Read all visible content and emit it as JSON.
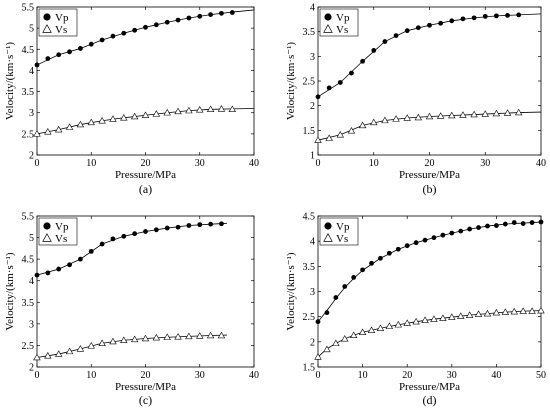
{
  "chart_data": [
    {
      "type": "scatter",
      "panel_label": "(a)",
      "xlabel": "Pressure/MPa",
      "ylabel": "Velocity/(km·s⁻¹)",
      "xlim": [
        0,
        40
      ],
      "ylim": [
        2,
        5.5
      ],
      "xticks": [
        0,
        10,
        20,
        30,
        40
      ],
      "yticks": [
        2,
        2.5,
        3,
        3.5,
        4,
        4.5,
        5,
        5.5
      ],
      "legend_position": "top-left",
      "series": [
        {
          "name": "Vp",
          "marker": "circle",
          "x": [
            0,
            2,
            4,
            6,
            8,
            10,
            12,
            14,
            16,
            18,
            20,
            22,
            24,
            26,
            28,
            30,
            32,
            34,
            36
          ],
          "y": [
            4.13,
            4.28,
            4.37,
            4.44,
            4.52,
            4.62,
            4.72,
            4.81,
            4.88,
            4.95,
            5.02,
            5.08,
            5.14,
            5.19,
            5.24,
            5.28,
            5.32,
            5.35,
            5.37
          ],
          "fit": {
            "x": [
              0,
              4,
              8,
              12,
              16,
              20,
              24,
              28,
              32,
              36,
              40
            ],
            "y": [
              4.13,
              4.37,
              4.52,
              4.72,
              4.88,
              5.02,
              5.14,
              5.24,
              5.32,
              5.38,
              5.43
            ]
          }
        },
        {
          "name": "Vs",
          "marker": "triangle",
          "x": [
            0,
            2,
            4,
            6,
            8,
            10,
            12,
            14,
            16,
            18,
            20,
            22,
            24,
            26,
            28,
            30,
            32,
            34,
            36
          ],
          "y": [
            2.5,
            2.55,
            2.6,
            2.66,
            2.72,
            2.77,
            2.81,
            2.85,
            2.88,
            2.91,
            2.94,
            2.97,
            3.0,
            3.03,
            3.05,
            3.07,
            3.08,
            3.09,
            3.08
          ],
          "fit": {
            "x": [
              0,
              4,
              8,
              12,
              16,
              20,
              24,
              28,
              32,
              36,
              40
            ],
            "y": [
              2.5,
              2.6,
              2.72,
              2.81,
              2.88,
              2.94,
              3.0,
              3.05,
              3.08,
              3.09,
              3.1
            ]
          }
        }
      ]
    },
    {
      "type": "scatter",
      "panel_label": "(b)",
      "xlabel": "Pressure/MPa",
      "ylabel": "Velocity/(km·s⁻¹)",
      "xlim": [
        0,
        40
      ],
      "ylim": [
        1,
        4
      ],
      "xticks": [
        0,
        10,
        20,
        30,
        40
      ],
      "yticks": [
        1,
        1.5,
        2,
        2.5,
        3,
        3.5,
        4
      ],
      "legend_position": "top-left",
      "series": [
        {
          "name": "Vp",
          "marker": "circle",
          "x": [
            0,
            2,
            4,
            6,
            8,
            10,
            12,
            14,
            16,
            18,
            20,
            22,
            24,
            26,
            28,
            30,
            32,
            34,
            36
          ],
          "y": [
            2.18,
            2.36,
            2.47,
            2.66,
            2.9,
            3.12,
            3.3,
            3.42,
            3.52,
            3.58,
            3.63,
            3.67,
            3.72,
            3.76,
            3.78,
            3.81,
            3.82,
            3.83,
            3.84
          ],
          "fit": {
            "x": [
              0,
              4,
              8,
              12,
              16,
              20,
              24,
              28,
              32,
              36,
              40
            ],
            "y": [
              2.18,
              2.47,
              2.9,
              3.3,
              3.52,
              3.63,
              3.72,
              3.78,
              3.82,
              3.84,
              3.86
            ]
          }
        },
        {
          "name": "Vs",
          "marker": "triangle",
          "x": [
            0,
            2,
            4,
            6,
            8,
            10,
            12,
            14,
            16,
            18,
            20,
            22,
            24,
            26,
            28,
            30,
            32,
            34,
            36
          ],
          "y": [
            1.3,
            1.34,
            1.41,
            1.49,
            1.6,
            1.66,
            1.7,
            1.73,
            1.75,
            1.76,
            1.78,
            1.79,
            1.8,
            1.81,
            1.82,
            1.83,
            1.84,
            1.85,
            1.86
          ],
          "fit": {
            "x": [
              0,
              4,
              8,
              12,
              16,
              20,
              24,
              28,
              32,
              36,
              40
            ],
            "y": [
              1.3,
              1.41,
              1.6,
              1.7,
              1.75,
              1.78,
              1.8,
              1.82,
              1.84,
              1.86,
              1.87
            ]
          }
        }
      ]
    },
    {
      "type": "scatter",
      "panel_label": "(c)",
      "xlabel": "Pressure/MPa",
      "ylabel": "Velocity/(km·s⁻¹)",
      "xlim": [
        0,
        40
      ],
      "ylim": [
        2,
        5.5
      ],
      "xticks": [
        0,
        10,
        20,
        30,
        40
      ],
      "yticks": [
        2,
        2.5,
        3,
        3.5,
        4,
        4.5,
        5,
        5.5
      ],
      "legend_position": "top-left",
      "series": [
        {
          "name": "Vp",
          "marker": "circle",
          "x": [
            0,
            2,
            4,
            6,
            8,
            10,
            12,
            14,
            16,
            18,
            20,
            22,
            24,
            26,
            28,
            30,
            32,
            34
          ],
          "y": [
            4.13,
            4.18,
            4.27,
            4.37,
            4.5,
            4.68,
            4.85,
            4.97,
            5.03,
            5.09,
            5.14,
            5.18,
            5.22,
            5.24,
            5.28,
            5.3,
            5.31,
            5.32
          ],
          "fit": {
            "x": [
              0,
              4,
              8,
              12,
              16,
              20,
              24,
              28,
              32,
              35
            ],
            "y": [
              4.13,
              4.27,
              4.5,
              4.85,
              5.03,
              5.14,
              5.22,
              5.28,
              5.31,
              5.33
            ]
          }
        },
        {
          "name": "Vs",
          "marker": "triangle",
          "x": [
            0,
            2,
            4,
            6,
            8,
            10,
            12,
            14,
            16,
            18,
            20,
            22,
            24,
            26,
            28,
            30,
            32,
            34
          ],
          "y": [
            2.22,
            2.26,
            2.3,
            2.36,
            2.42,
            2.49,
            2.55,
            2.59,
            2.62,
            2.64,
            2.66,
            2.68,
            2.69,
            2.7,
            2.71,
            2.72,
            2.73,
            2.73
          ],
          "fit": {
            "x": [
              0,
              4,
              8,
              12,
              16,
              20,
              24,
              28,
              32,
              35
            ],
            "y": [
              2.22,
              2.3,
              2.42,
              2.55,
              2.62,
              2.66,
              2.69,
              2.71,
              2.73,
              2.74
            ]
          }
        }
      ]
    },
    {
      "type": "scatter",
      "panel_label": "(d)",
      "xlabel": "Pressure/MPa",
      "ylabel": "Velocity/(km·s⁻¹)",
      "xlim": [
        0,
        50
      ],
      "ylim": [
        1.5,
        4.5
      ],
      "xticks": [
        0,
        10,
        20,
        30,
        40,
        50
      ],
      "yticks": [
        1.5,
        2,
        2.5,
        3,
        3.5,
        4,
        4.5
      ],
      "legend_position": "top-left",
      "series": [
        {
          "name": "Vp",
          "marker": "circle",
          "x": [
            0,
            2,
            4,
            6,
            8,
            10,
            12,
            14,
            16,
            18,
            20,
            22,
            24,
            26,
            28,
            30,
            32,
            34,
            36,
            38,
            40,
            42,
            44,
            46,
            48,
            50
          ],
          "y": [
            2.4,
            2.58,
            2.88,
            3.1,
            3.28,
            3.43,
            3.56,
            3.66,
            3.76,
            3.84,
            3.91,
            3.97,
            4.02,
            4.07,
            4.12,
            4.16,
            4.2,
            4.24,
            4.27,
            4.3,
            4.31,
            4.34,
            4.37,
            4.35,
            4.37,
            4.38
          ],
          "fit": {
            "x": [
              0,
              2,
              4,
              6,
              8,
              10,
              14,
              18,
              22,
              26,
              30,
              34,
              38,
              42,
              46,
              50
            ],
            "y": [
              2.4,
              2.62,
              2.86,
              3.08,
              3.26,
              3.42,
              3.66,
              3.84,
              3.97,
              4.07,
              4.16,
              4.24,
              4.3,
              4.34,
              4.36,
              4.38
            ]
          }
        },
        {
          "name": "Vs",
          "marker": "triangle",
          "x": [
            0,
            2,
            4,
            6,
            8,
            10,
            12,
            14,
            16,
            18,
            20,
            22,
            24,
            26,
            28,
            30,
            32,
            34,
            36,
            38,
            40,
            42,
            44,
            46,
            48,
            50
          ],
          "y": [
            1.7,
            1.85,
            1.97,
            2.06,
            2.13,
            2.19,
            2.23,
            2.27,
            2.31,
            2.34,
            2.37,
            2.4,
            2.43,
            2.45,
            2.47,
            2.49,
            2.51,
            2.53,
            2.55,
            2.56,
            2.58,
            2.59,
            2.6,
            2.61,
            2.61,
            2.62
          ],
          "fit": {
            "x": [
              0,
              2,
              4,
              6,
              8,
              10,
              14,
              18,
              22,
              26,
              30,
              34,
              38,
              42,
              46,
              50
            ],
            "y": [
              1.7,
              1.86,
              1.97,
              2.06,
              2.13,
              2.19,
              2.27,
              2.34,
              2.4,
              2.45,
              2.49,
              2.53,
              2.56,
              2.59,
              2.61,
              2.62
            ]
          }
        }
      ]
    }
  ]
}
